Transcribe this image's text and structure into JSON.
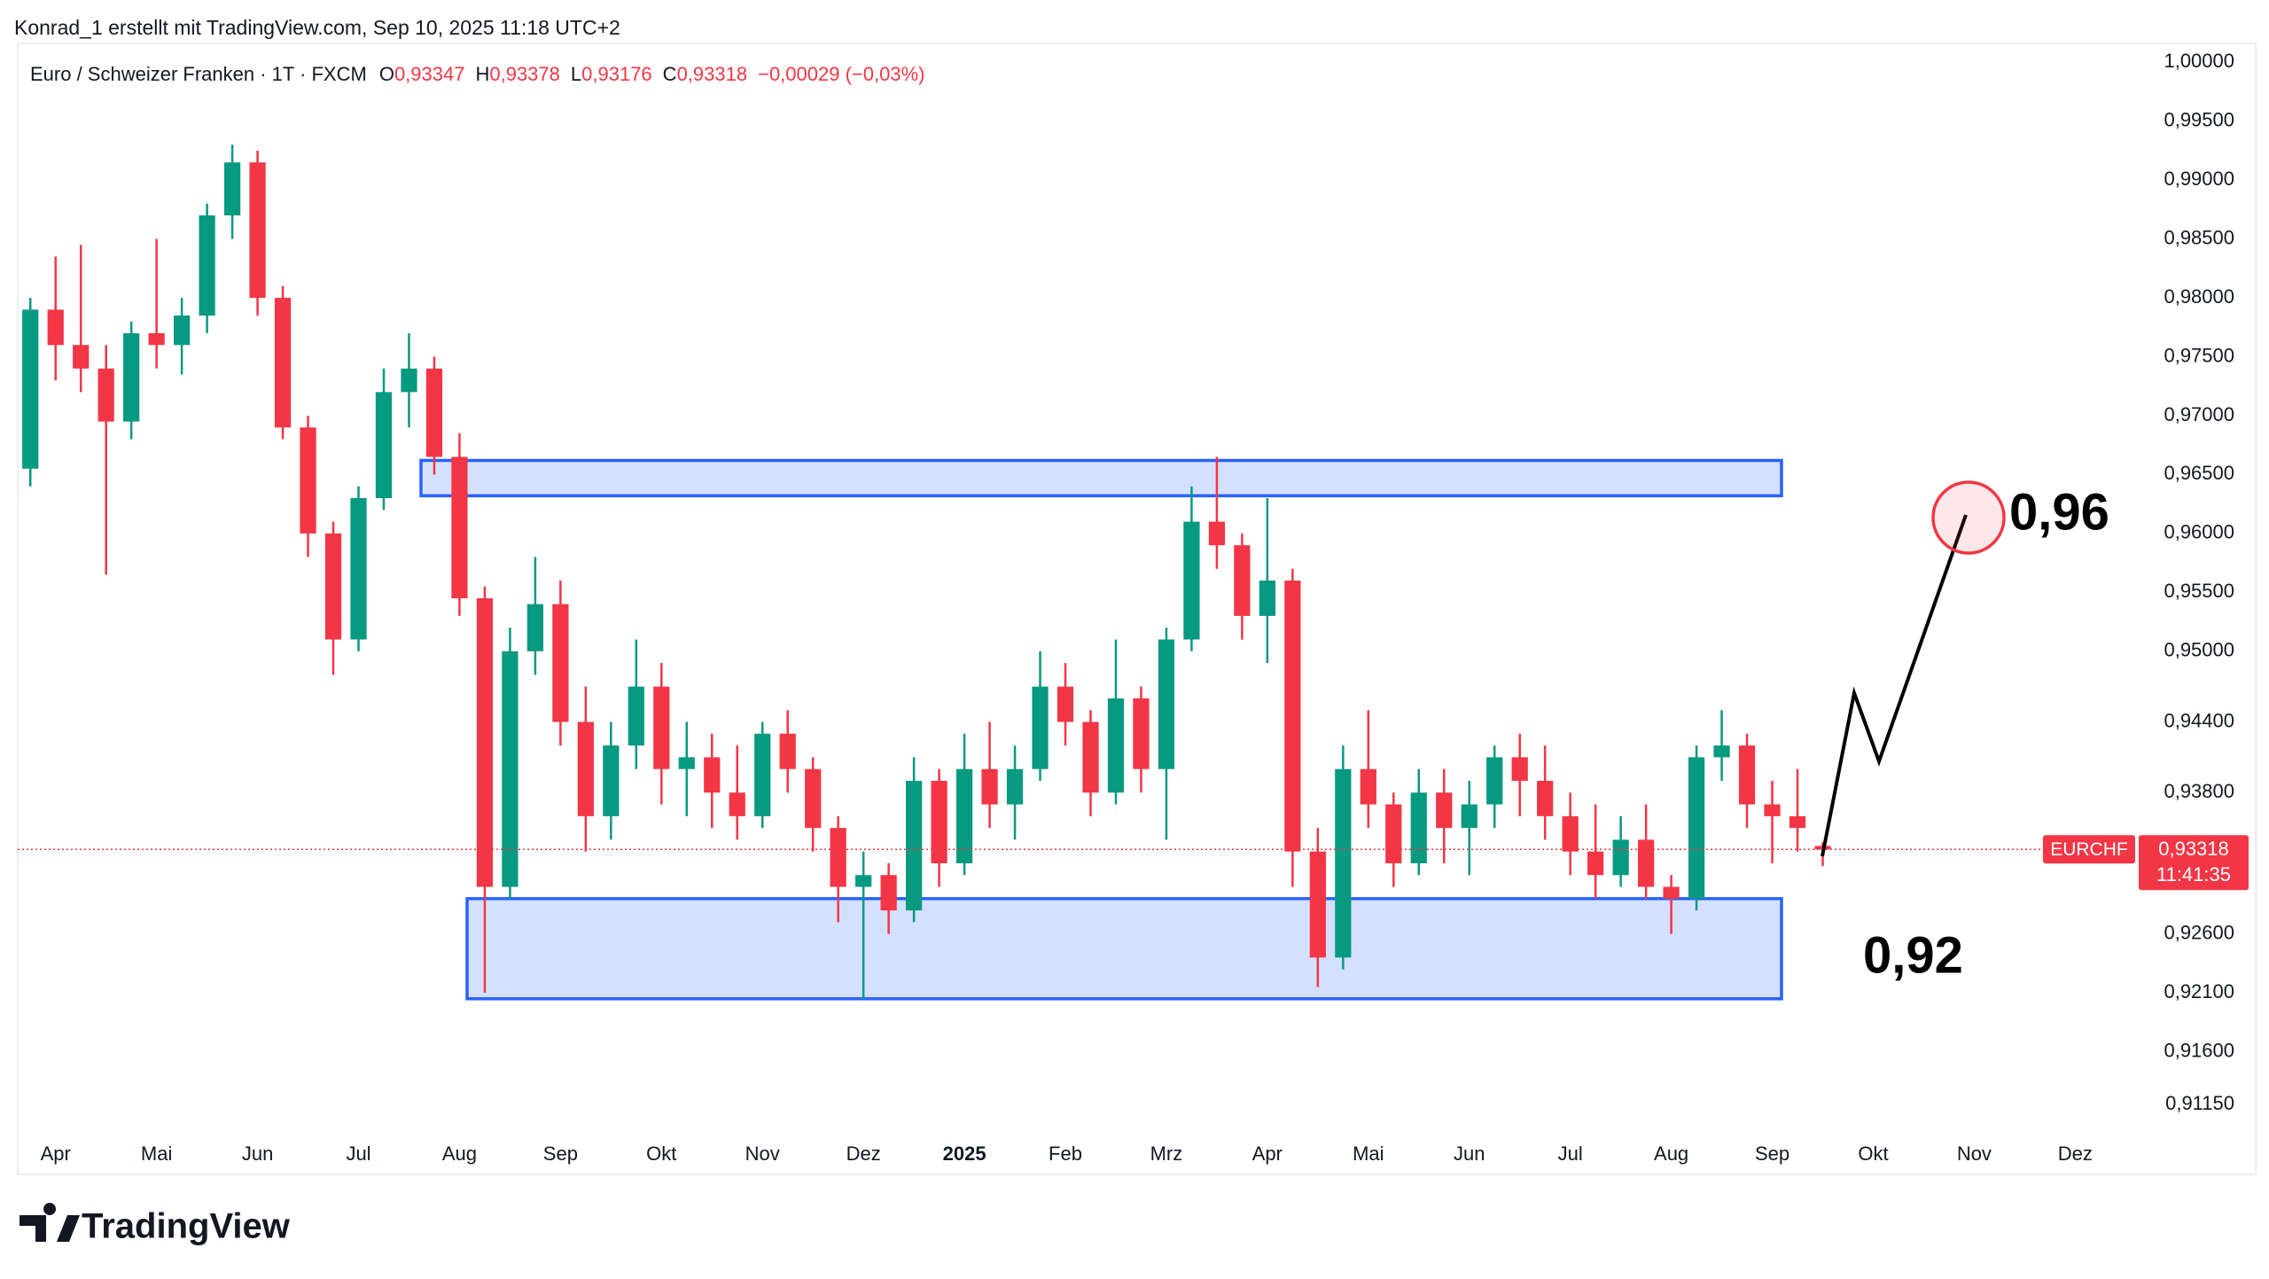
{
  "header": {
    "attribution": "Konrad_1 erstellt mit TradingView.com, Sep 10, 2025 11:18 UTC+2",
    "symbol": "Euro / Schweizer Franken · 1T · FXCM",
    "ohlc": [
      {
        "key": "O",
        "value": "0,93347"
      },
      {
        "key": "H",
        "value": "0,93378"
      },
      {
        "key": "L",
        "value": "0,93176"
      },
      {
        "key": "C",
        "value": "0,93318"
      }
    ],
    "change": "−0,00029 (−0,03%)"
  },
  "logo": "TradingView",
  "chart_data": {
    "type": "candlestick",
    "categories": [
      null,
      "Apr",
      null,
      null,
      null,
      "Mai",
      null,
      null,
      null,
      "Jun",
      null,
      null,
      null,
      "Jul",
      null,
      null,
      null,
      "Aug",
      null,
      null,
      null,
      "Sep",
      null,
      null,
      null,
      "Okt",
      null,
      null,
      null,
      "Nov",
      null,
      null,
      null,
      "Dez",
      null,
      null,
      null,
      "2025",
      null,
      null,
      null,
      "Feb",
      null,
      null,
      null,
      "Mrz",
      null,
      null,
      null,
      "Apr",
      null,
      null,
      null,
      "Mai",
      null,
      null,
      null,
      "Jun",
      null,
      null,
      null,
      "Jul",
      null,
      null,
      null,
      "Aug",
      null,
      null,
      null,
      "Sep",
      null,
      null,
      null,
      "Okt",
      null,
      null,
      null,
      "Nov",
      null,
      null,
      null,
      "Dez",
      null,
      null,
      null
    ],
    "open": [
      0.9655,
      0.979,
      0.976,
      0.974,
      0.9695,
      0.977,
      0.976,
      0.9785,
      0.987,
      0.9915,
      0.98,
      0.969,
      0.96,
      0.951,
      0.963,
      0.972,
      0.974,
      0.9665,
      0.9545,
      0.93,
      0.95,
      0.954,
      0.944,
      0.936,
      0.942,
      0.947,
      0.94,
      0.941,
      0.938,
      0.936,
      0.943,
      0.94,
      0.935,
      0.93,
      0.931,
      0.928,
      0.939,
      0.932,
      0.94,
      0.937,
      0.94,
      0.947,
      0.944,
      0.938,
      0.946,
      0.94,
      0.951,
      0.961,
      0.959,
      0.953,
      0.956,
      0.933,
      0.924,
      0.94,
      0.937,
      0.932,
      0.938,
      0.935,
      0.937,
      0.941,
      0.939,
      0.936,
      0.933,
      0.931,
      0.934,
      0.93,
      0.929,
      0.941,
      0.942,
      0.937,
      0.936,
      0.93347,
      null,
      null,
      null,
      null,
      null,
      null,
      null,
      null,
      null,
      null,
      null,
      null,
      null
    ],
    "high": [
      0.98,
      0.9835,
      0.9845,
      0.976,
      0.978,
      0.985,
      0.98,
      0.988,
      0.993,
      0.9925,
      0.981,
      0.97,
      0.961,
      0.964,
      0.974,
      0.977,
      0.975,
      0.9685,
      0.9555,
      0.952,
      0.958,
      0.956,
      0.947,
      0.944,
      0.951,
      0.949,
      0.944,
      0.943,
      0.942,
      0.944,
      0.945,
      0.941,
      0.936,
      0.933,
      0.932,
      0.941,
      0.94,
      0.943,
      0.944,
      0.942,
      0.95,
      0.949,
      0.945,
      0.951,
      0.947,
      0.952,
      0.964,
      0.9665,
      0.96,
      0.963,
      0.957,
      0.935,
      0.942,
      0.945,
      0.938,
      0.94,
      0.94,
      0.939,
      0.942,
      0.943,
      0.942,
      0.938,
      0.937,
      0.936,
      0.937,
      0.931,
      0.942,
      0.945,
      0.943,
      0.939,
      0.94,
      0.93378,
      null,
      null,
      null,
      null,
      null,
      null,
      null,
      null,
      null,
      null,
      null,
      null,
      null
    ],
    "low": [
      0.964,
      0.973,
      0.972,
      0.9565,
      0.968,
      0.974,
      0.9735,
      0.977,
      0.985,
      0.9785,
      0.968,
      0.958,
      0.948,
      0.95,
      0.962,
      0.969,
      0.965,
      0.953,
      0.921,
      0.929,
      0.948,
      0.942,
      0.933,
      0.934,
      0.94,
      0.937,
      0.936,
      0.935,
      0.934,
      0.935,
      0.938,
      0.933,
      0.927,
      0.9205,
      0.926,
      0.927,
      0.93,
      0.931,
      0.935,
      0.934,
      0.939,
      0.942,
      0.936,
      0.937,
      0.938,
      0.934,
      0.95,
      0.957,
      0.951,
      0.949,
      0.93,
      0.9215,
      0.923,
      0.935,
      0.93,
      0.931,
      0.932,
      0.931,
      0.935,
      0.936,
      0.934,
      0.931,
      0.929,
      0.93,
      0.929,
      0.926,
      0.928,
      0.939,
      0.935,
      0.932,
      0.933,
      0.93176,
      null,
      null,
      null,
      null,
      null,
      null,
      null,
      null,
      null,
      null,
      null,
      null,
      null
    ],
    "close": [
      0.979,
      0.976,
      0.974,
      0.9695,
      0.977,
      0.976,
      0.9785,
      0.987,
      0.9915,
      0.98,
      0.969,
      0.96,
      0.951,
      0.963,
      0.972,
      0.974,
      0.9665,
      0.9545,
      0.93,
      0.95,
      0.954,
      0.944,
      0.936,
      0.942,
      0.947,
      0.94,
      0.941,
      0.938,
      0.936,
      0.943,
      0.94,
      0.935,
      0.93,
      0.931,
      0.928,
      0.939,
      0.932,
      0.94,
      0.937,
      0.94,
      0.947,
      0.944,
      0.938,
      0.946,
      0.94,
      0.951,
      0.961,
      0.959,
      0.953,
      0.956,
      0.933,
      0.924,
      0.94,
      0.937,
      0.932,
      0.938,
      0.935,
      0.937,
      0.941,
      0.939,
      0.936,
      0.933,
      0.931,
      0.934,
      0.93,
      0.929,
      0.941,
      0.942,
      0.937,
      0.936,
      0.935,
      0.93318,
      null,
      null,
      null,
      null,
      null,
      null,
      null,
      null,
      null,
      null,
      null,
      null,
      null
    ],
    "up_color": "#089981",
    "down_color": "#f23645",
    "ylim": [
      0.9092,
      1.0016
    ],
    "yticks": [
      {
        "value": 1.0,
        "label": "1,00000"
      },
      {
        "value": 0.995,
        "label": "0,99500"
      },
      {
        "value": 0.99,
        "label": "0,99000"
      },
      {
        "value": 0.985,
        "label": "0,98500"
      },
      {
        "value": 0.98,
        "label": "0,98000"
      },
      {
        "value": 0.975,
        "label": "0,97500"
      },
      {
        "value": 0.97,
        "label": "0,97000"
      },
      {
        "value": 0.965,
        "label": "0,96500"
      },
      {
        "value": 0.96,
        "label": "0,96000"
      },
      {
        "value": 0.955,
        "label": "0,95500"
      },
      {
        "value": 0.95,
        "label": "0,95000"
      },
      {
        "value": 0.944,
        "label": "0,94400"
      },
      {
        "value": 0.938,
        "label": "0,93800"
      },
      {
        "value": 0.926,
        "label": "0,92600"
      },
      {
        "value": 0.921,
        "label": "0,92100"
      },
      {
        "value": 0.916,
        "label": "0,91600"
      },
      {
        "value": 0.9115,
        "label": "0,91150"
      }
    ],
    "grid": false,
    "zones": [
      {
        "low": 0.9632,
        "high": 0.9662
      },
      {
        "low": 0.9205,
        "high": 0.929
      }
    ],
    "zone_color": "#2962ff",
    "price_tag": {
      "symbol": "EURCHF",
      "price": "0,93318",
      "countdown": "11:41:35"
    },
    "annotations": [
      "0,96",
      "0,92"
    ]
  }
}
